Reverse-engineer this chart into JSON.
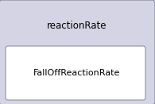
{
  "outer_box_color": "#d4d4e4",
  "outer_box_edge_color": "#9090aa",
  "inner_box_color": "#ffffff",
  "inner_box_edge_color": "#9090aa",
  "outer_label": "reactionRate",
  "inner_label": "FallOffReactionRate",
  "outer_label_fontsize": 8.5,
  "inner_label_fontsize": 8.0,
  "text_color": "#000000",
  "background_color": "#ffffff"
}
